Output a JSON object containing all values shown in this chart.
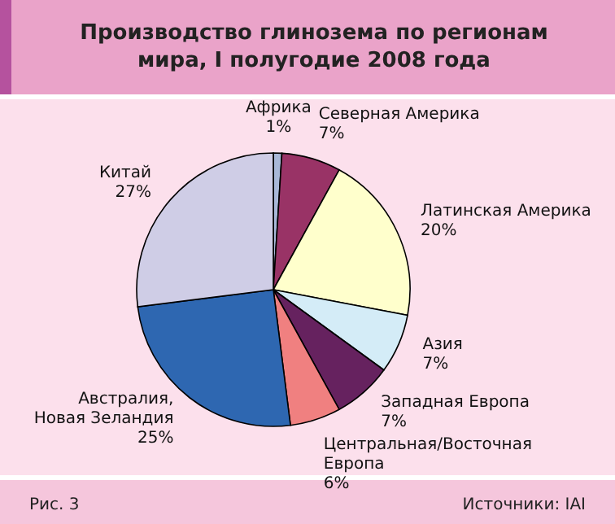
{
  "chart_data": {
    "type": "pie",
    "title": "Производство глинозема по регионам мира, I полугодие 2008 года",
    "categories": [
      "Африка",
      "Северная Америка",
      "Латинская Америка",
      "Азия",
      "Западная Европа",
      "Центральная/Восточная Европа",
      "Австралия, Новая Зеландия",
      "Китай"
    ],
    "values": [
      1,
      7,
      20,
      7,
      7,
      6,
      25,
      27
    ],
    "colors": [
      "#a9b8d8",
      "#993366",
      "#ffffcc",
      "#d4ecf7",
      "#66225f",
      "#f08080",
      "#2e67b1",
      "#cfcde6"
    ],
    "value_labels": [
      "1%",
      "7%",
      "20%",
      "7%",
      "7%",
      "6%",
      "25%",
      "27%"
    ],
    "annotations": [
      "Рис. 3",
      "Источники: IAI"
    ]
  }
}
